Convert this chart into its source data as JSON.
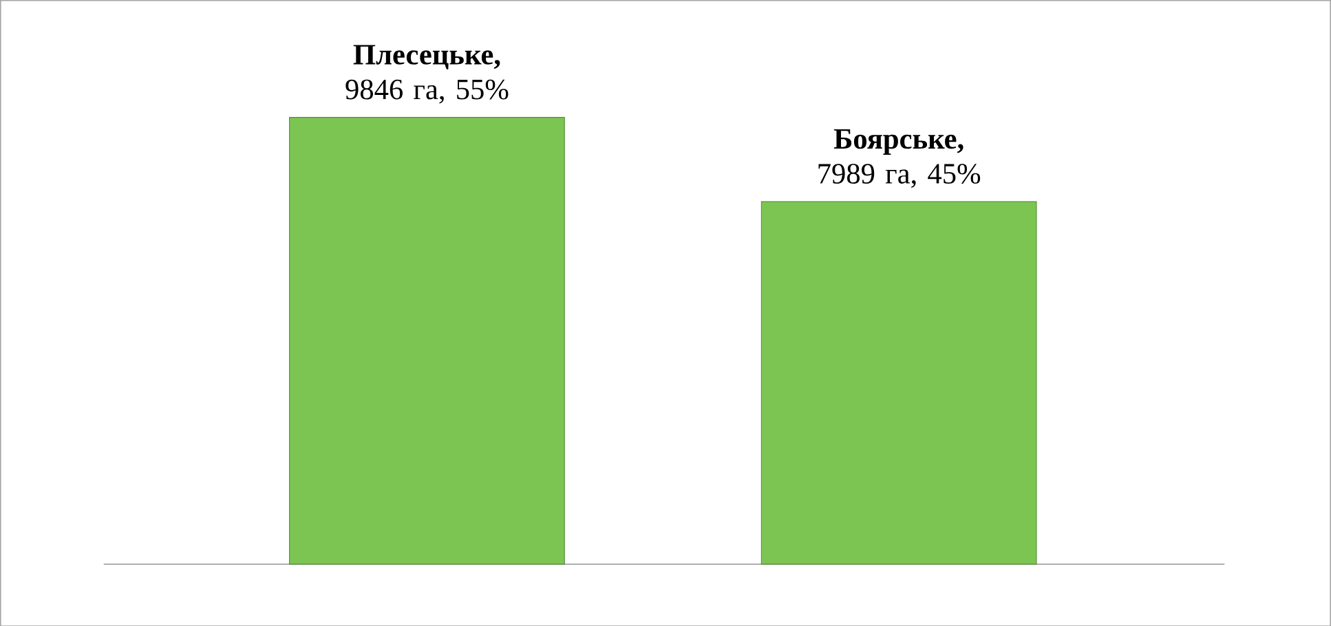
{
  "chart_data": {
    "type": "bar",
    "categories": [
      null,
      null
    ],
    "values": [
      9846,
      7989
    ],
    "value_labels": [
      "**Плесецьке,** 9846 га, 55%",
      "**Боярське,** 7989 га, 45%"
    ],
    "color": "#7cc552",
    "tick_labels": false
  }
}
